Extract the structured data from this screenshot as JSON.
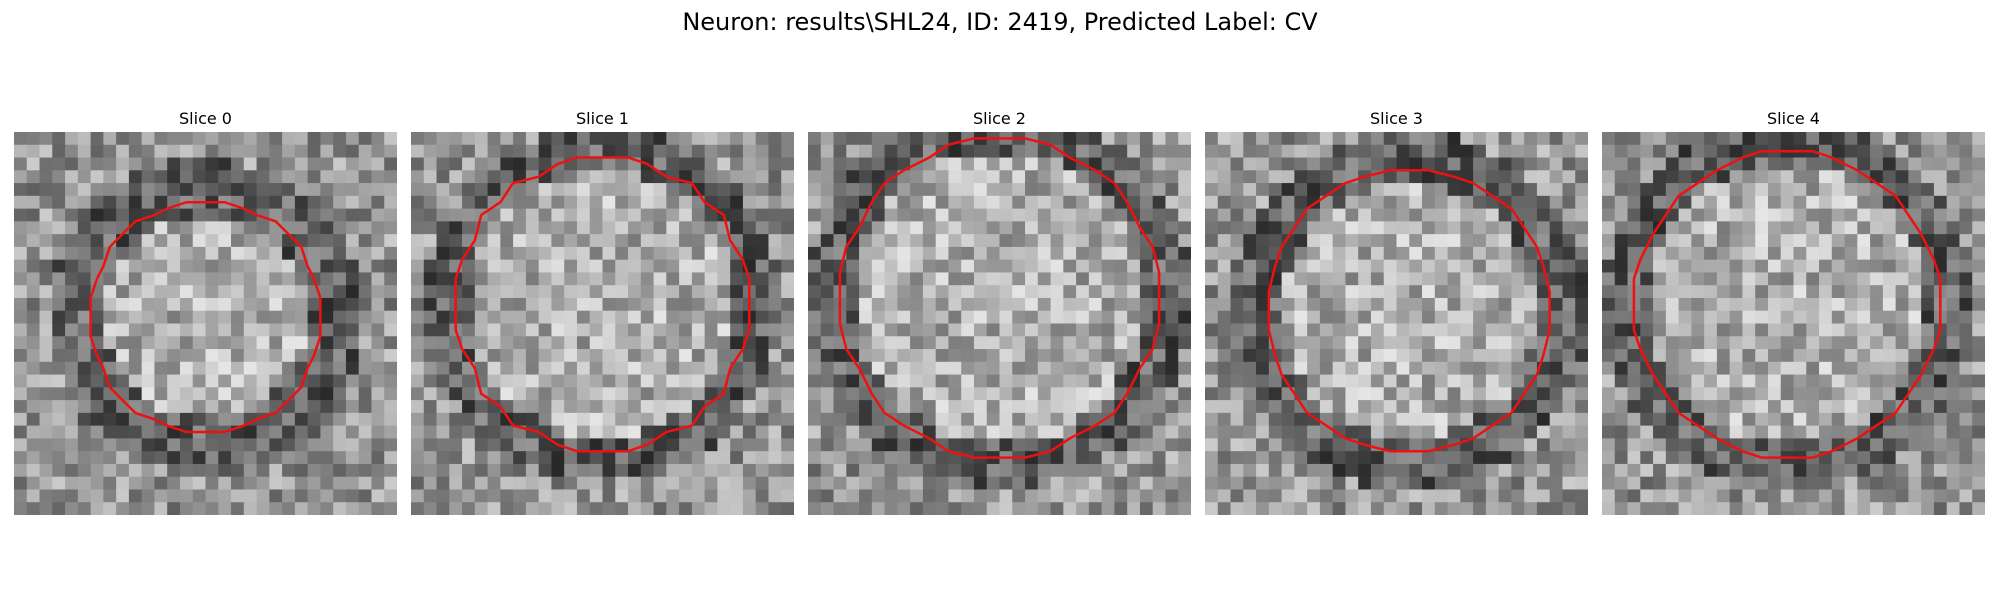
{
  "figure": {
    "title": "Neuron: results\\SHL24, ID: 2419, Predicted Label: CV",
    "contour_color": "#ee1111"
  },
  "panels": [
    {
      "title": "Slice 0"
    },
    {
      "title": "Slice 1"
    },
    {
      "title": "Slice 2"
    },
    {
      "title": "Slice 3"
    },
    {
      "title": "Slice 4"
    }
  ]
}
